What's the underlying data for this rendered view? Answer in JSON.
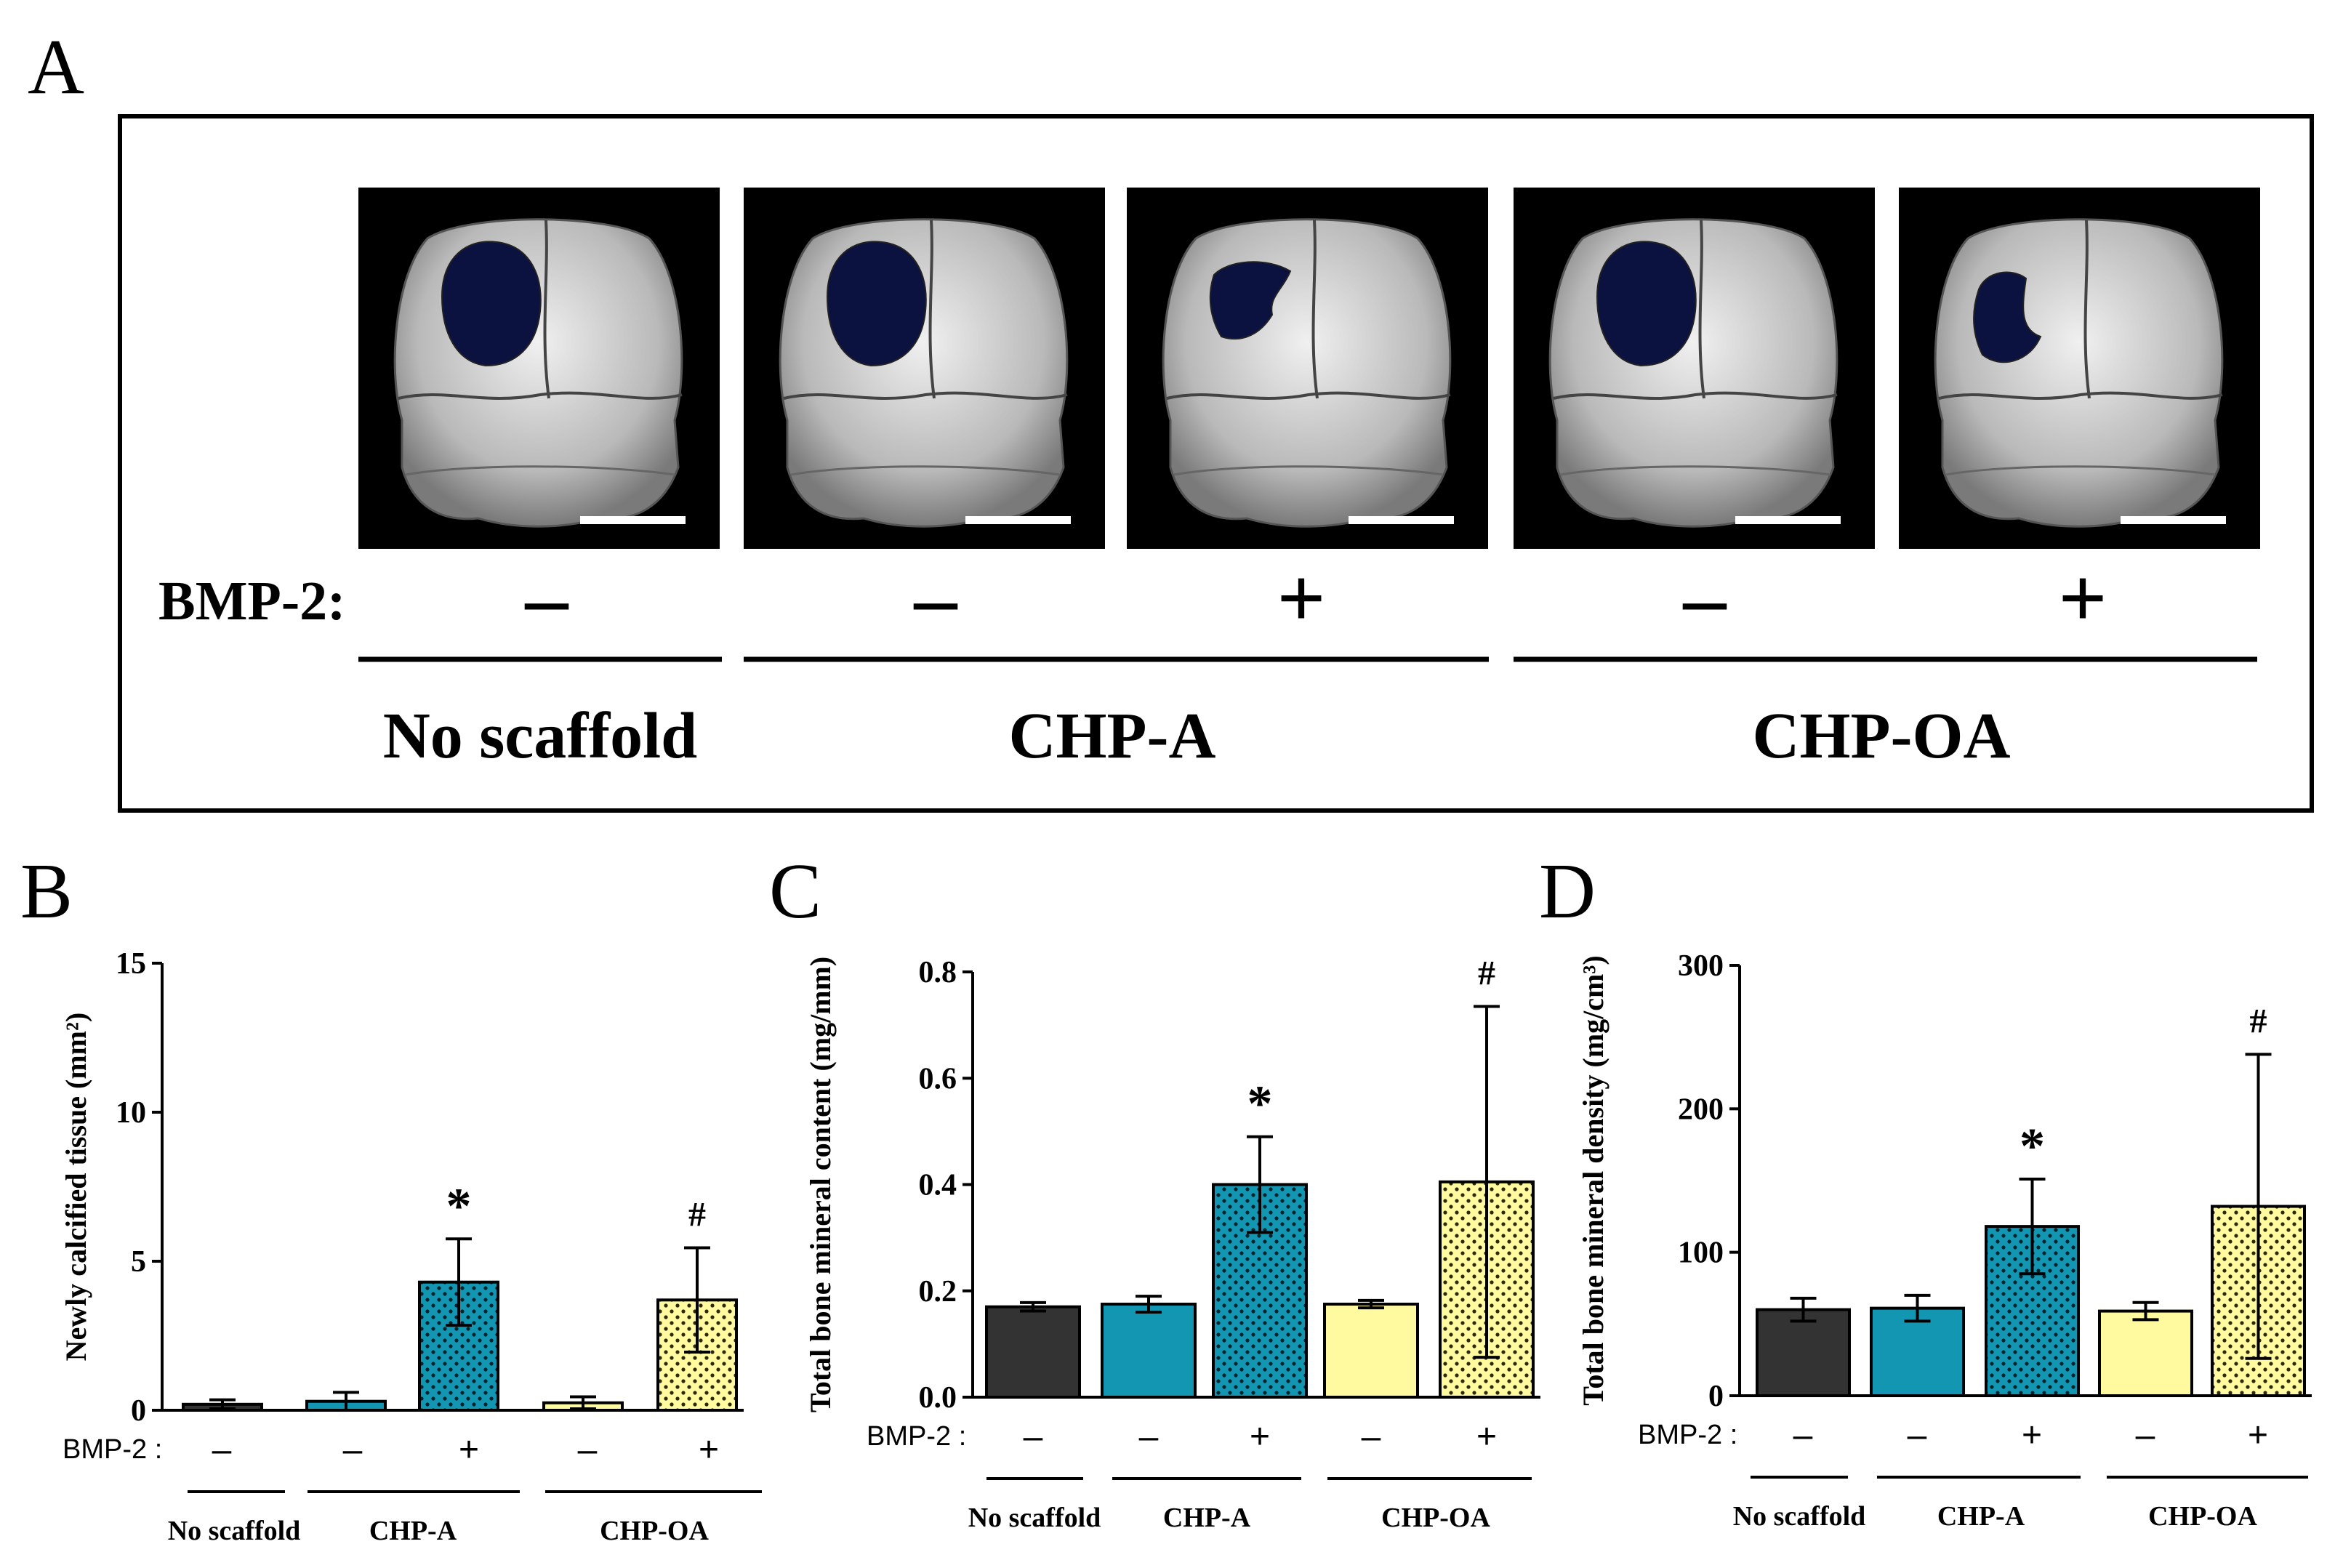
{
  "panel_a": {
    "letter": "A",
    "bmp_label": "BMP-2:",
    "images": [
      {
        "group": "No scaffold",
        "bmp": "–",
        "defect": "round"
      },
      {
        "group": "CHP-A",
        "bmp": "–",
        "defect": "round"
      },
      {
        "group": "CHP-A",
        "bmp": "+",
        "defect": "partial"
      },
      {
        "group": "CHP-OA",
        "bmp": "–",
        "defect": "round"
      },
      {
        "group": "CHP-OA",
        "bmp": "+",
        "defect": "small"
      }
    ],
    "groups": [
      "No scaffold",
      "CHP-A",
      "CHP-OA"
    ]
  },
  "colors": {
    "no_scaffold": "#333333",
    "chp_a": "#1396b2",
    "chp_oa": "#fffaa0",
    "skull_bg": "#000000",
    "defect": "#0b1240",
    "bone": "#c9c9c9"
  },
  "chart_data": [
    {
      "panel": "B",
      "type": "bar",
      "ylabel": "Newly calcified tissue (mm²)",
      "ylim": [
        0,
        15
      ],
      "yticks": [
        "0",
        "5",
        "10",
        "15"
      ],
      "ytick_values": [
        0,
        5,
        10,
        15
      ],
      "bmp_label": "BMP-2 :",
      "bmp": [
        "–",
        "–",
        "+",
        "–",
        "+"
      ],
      "groups": [
        "No scaffold",
        "CHP-A",
        "CHP-OA"
      ],
      "values": [
        0.2,
        0.3,
        4.3,
        0.25,
        3.7
      ],
      "errors": [
        0.15,
        0.3,
        1.45,
        0.2,
        1.75
      ],
      "annotations": [
        "",
        "",
        "*",
        "",
        "#"
      ],
      "fills": [
        "no_scaffold",
        "chp_a",
        "chp_a_dots",
        "chp_oa",
        "chp_oa_dots"
      ]
    },
    {
      "panel": "C",
      "type": "bar",
      "ylabel": "Total bone mineral content (mg/mm)",
      "ylim": [
        0,
        0.8
      ],
      "yticks": [
        "0.0",
        "0.2",
        "0.4",
        "0.6",
        "0.8"
      ],
      "ytick_values": [
        0,
        0.2,
        0.4,
        0.6,
        0.8
      ],
      "bmp_label": "BMP-2 :",
      "bmp": [
        "–",
        "–",
        "+",
        "–",
        "+"
      ],
      "groups": [
        "No scaffold",
        "CHP-A",
        "CHP-OA"
      ],
      "values": [
        0.17,
        0.175,
        0.4,
        0.175,
        0.405
      ],
      "errors": [
        0.008,
        0.015,
        0.09,
        0.007,
        0.33
      ],
      "annotations": [
        "",
        "",
        "*",
        "",
        "#"
      ],
      "fills": [
        "no_scaffold",
        "chp_a",
        "chp_a_dots",
        "chp_oa",
        "chp_oa_dots"
      ]
    },
    {
      "panel": "D",
      "type": "bar",
      "ylabel": "Total bone mineral density (mg/cm³)",
      "ylim": [
        0,
        300
      ],
      "yticks": [
        "0",
        "100",
        "200",
        "300"
      ],
      "ytick_values": [
        0,
        100,
        200,
        300
      ],
      "bmp_label": "BMP-2 :",
      "bmp": [
        "–",
        "–",
        "+",
        "–",
        "+"
      ],
      "groups": [
        "No scaffold",
        "CHP-A",
        "CHP-OA"
      ],
      "values": [
        60,
        61,
        118,
        59,
        132
      ],
      "errors": [
        8,
        9,
        33,
        6,
        106
      ],
      "annotations": [
        "",
        "",
        "*",
        "",
        "#"
      ],
      "fills": [
        "no_scaffold",
        "chp_a",
        "chp_a_dots",
        "chp_oa",
        "chp_oa_dots"
      ]
    }
  ]
}
